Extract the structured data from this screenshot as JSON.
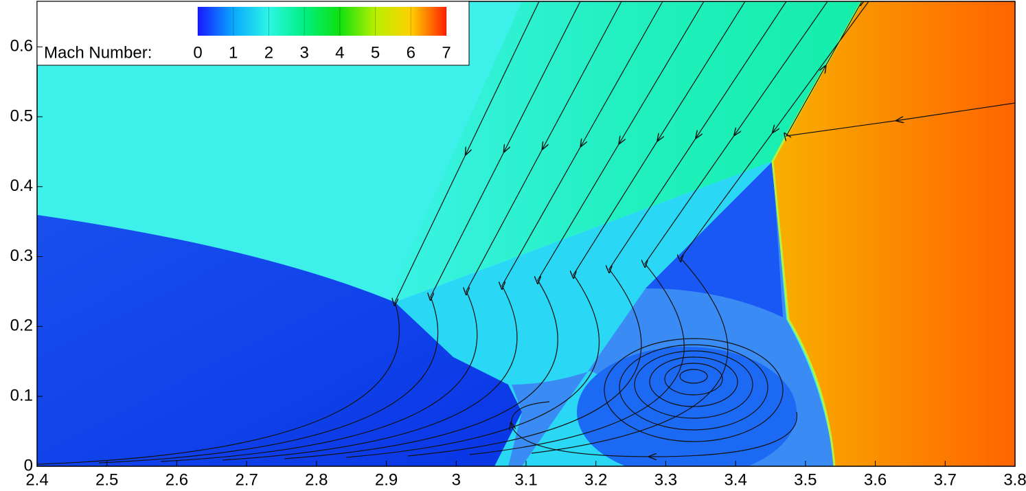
{
  "chart_data": {
    "type": "contour",
    "xlim": [
      2.4,
      3.8
    ],
    "ylim": [
      0,
      0.665
    ],
    "xticks": [
      2.4,
      2.5,
      2.6,
      2.7,
      2.8,
      2.9,
      3,
      3.1,
      3.2,
      3.3,
      3.4,
      3.5,
      3.6,
      3.7,
      3.8
    ],
    "yticks": [
      0,
      0.1,
      0.2,
      0.3,
      0.4,
      0.5,
      0.6
    ],
    "colorbar": {
      "label": "Mach Number:",
      "ticks": [
        0,
        1,
        2,
        3,
        4,
        5,
        6,
        7
      ],
      "colors": [
        "#1818ff",
        "#0aa8ff",
        "#2cf6e6",
        "#00f080",
        "#10e010",
        "#b8f000",
        "#ffd000",
        "#ff2000"
      ]
    }
  }
}
